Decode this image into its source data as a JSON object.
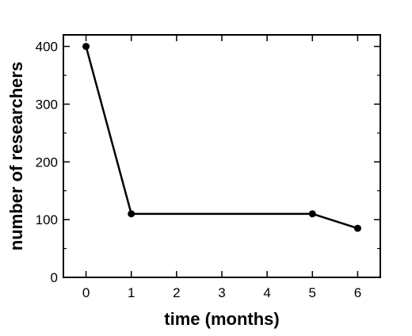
{
  "chart_data": {
    "type": "line",
    "title": "",
    "xlabel": "time (months)",
    "ylabel": "number of researchers",
    "xlim": [
      -0.5,
      6.5
    ],
    "ylim": [
      0,
      420
    ],
    "x_ticks": [
      0,
      1,
      2,
      3,
      4,
      5,
      6
    ],
    "x_tick_labels": [
      "0",
      "1",
      "2",
      "3",
      "4",
      "5",
      "6"
    ],
    "y_ticks": [
      0,
      100,
      200,
      300,
      400
    ],
    "y_tick_labels": [
      "0",
      "100",
      "200",
      "300",
      "400"
    ],
    "grid": false,
    "series": [
      {
        "x": [
          0,
          1,
          5,
          6
        ],
        "y": [
          400,
          110,
          110,
          85
        ],
        "color": "#000000",
        "marker": "circle"
      }
    ]
  }
}
